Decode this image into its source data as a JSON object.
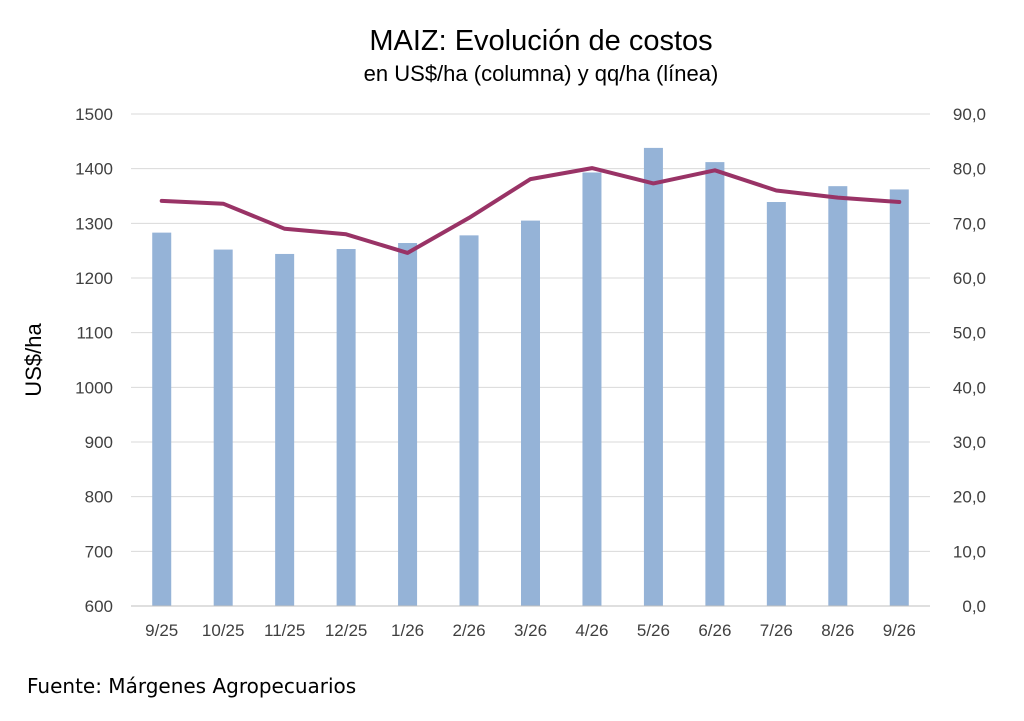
{
  "chart_data": {
    "type": "bar",
    "title": "MAIZ: Evolución de costos",
    "subtitle": "en US$/ha (columna) y qq/ha (línea)",
    "ylabel": "US$/ha",
    "y2label": "",
    "categories": [
      "9/25",
      "10/25",
      "11/25",
      "12/25",
      "1/26",
      "2/26",
      "3/26",
      "4/26",
      "5/26",
      "6/26",
      "7/26",
      "8/26",
      "9/26"
    ],
    "ylim": [
      600,
      1500
    ],
    "y2lim": [
      0,
      90
    ],
    "yticks": [
      "600",
      "700",
      "800",
      "900",
      "1000",
      "1100",
      "1200",
      "1300",
      "1400",
      "1500"
    ],
    "y2ticks": [
      "0,0",
      "10,0",
      "20,0",
      "30,0",
      "40,0",
      "50,0",
      "60,0",
      "70,0",
      "80,0",
      "90,0"
    ],
    "grid": true,
    "series": [
      {
        "type": "bar",
        "axis": "left",
        "color": "#95b3d7",
        "values": [
          1283,
          1252,
          1244,
          1253,
          1264,
          1278,
          1305,
          1393,
          1438,
          1412,
          1339,
          1368,
          1362
        ]
      },
      {
        "type": "line",
        "axis": "right",
        "color": "#993366",
        "values": [
          74.1,
          73.6,
          69.0,
          68.0,
          64.6,
          71.0,
          78.1,
          80.1,
          77.3,
          79.7,
          76.0,
          74.7,
          73.9
        ]
      }
    ]
  },
  "source": "Fuente: Márgenes Agropecuarios"
}
